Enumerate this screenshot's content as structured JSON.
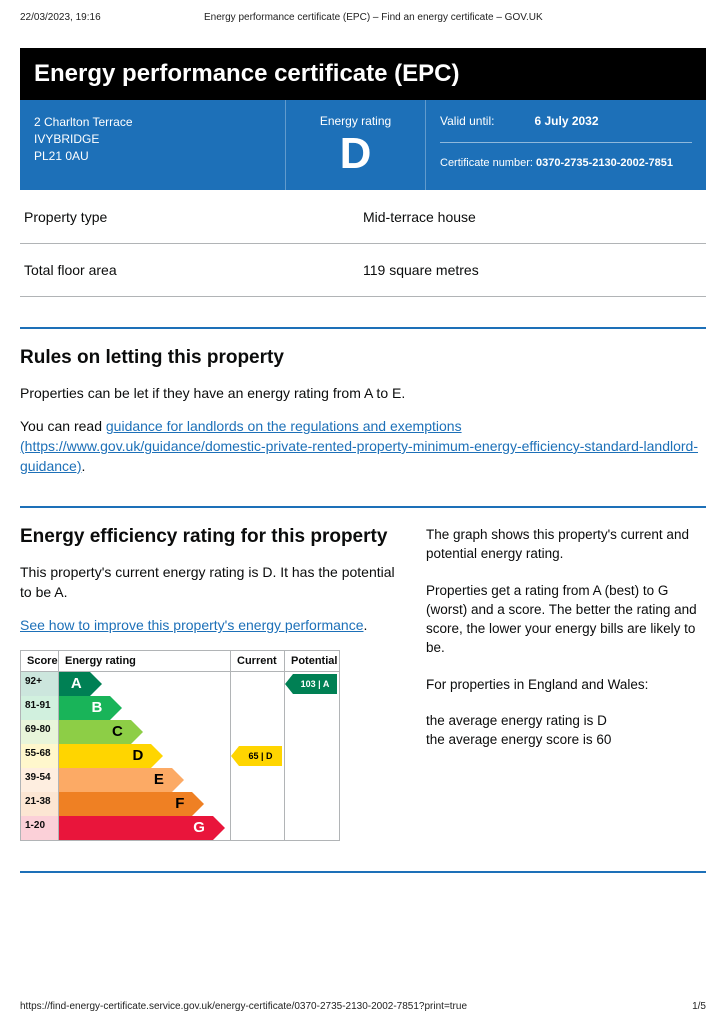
{
  "print_header": {
    "left": "22/03/2023, 19:16",
    "center": "Energy performance certificate (EPC) – Find an energy certificate – GOV.UK"
  },
  "title": "Energy performance certificate (EPC)",
  "address": {
    "line1": "2 Charlton Terrace",
    "line2": "IVYBRIDGE",
    "line3": "PL21 0AU"
  },
  "rating_box": {
    "label": "Energy rating",
    "letter": "D"
  },
  "validity": {
    "label": "Valid until:",
    "value": "6 July 2032",
    "cert_label": "Certificate number:",
    "cert_value": "0370-2735-2130-2002-7851"
  },
  "facts": {
    "property_type_label": "Property type",
    "property_type_value": "Mid-terrace house",
    "floor_area_label": "Total floor area",
    "floor_area_value": "119 square metres"
  },
  "letting": {
    "heading": "Rules on letting this property",
    "p1": "Properties can be let if they have an energy rating from A to E.",
    "p2a": "You can read ",
    "link_text": "guidance for landlords on the regulations and exemptions (https://www.gov.uk/guidance/domestic-private-rented-property-minimum-energy-efficiency-standard-landlord-guidance)",
    "p2b": "."
  },
  "eff": {
    "heading": "Energy efficiency rating for this property",
    "p1": "This property's current energy rating is D. It has the potential to be A.",
    "link": "See how to improve this property's energy performance",
    "right_p1": "The graph shows this property's current and potential energy rating.",
    "right_p2": "Properties get a rating from A (best) to G (worst) and a score. The better the rating and score, the lower your energy bills are likely to be.",
    "right_p3": "For properties in England and Wales:",
    "right_p4a": "the average energy rating is D",
    "right_p4b": "the average energy score is 60"
  },
  "chart": {
    "headers": {
      "score": "Score",
      "rating": "Energy rating",
      "current": "Current",
      "potential": "Potential"
    },
    "rows": [
      {
        "score": "92+",
        "letter": "A",
        "color": "#008054",
        "width_pct": 18,
        "text_color": "#fff"
      },
      {
        "score": "81-91",
        "letter": "B",
        "color": "#19b459",
        "width_pct": 30,
        "text_color": "#fff"
      },
      {
        "score": "69-80",
        "letter": "C",
        "color": "#8dce46",
        "width_pct": 42,
        "text_color": "#000"
      },
      {
        "score": "55-68",
        "letter": "D",
        "color": "#ffd500",
        "width_pct": 54,
        "text_color": "#000"
      },
      {
        "score": "39-54",
        "letter": "E",
        "color": "#fcaa65",
        "width_pct": 66,
        "text_color": "#000"
      },
      {
        "score": "21-38",
        "letter": "F",
        "color": "#ef8023",
        "width_pct": 78,
        "text_color": "#000"
      },
      {
        "score": "1-20",
        "letter": "G",
        "color": "#e9153b",
        "width_pct": 90,
        "text_color": "#fff"
      }
    ],
    "current": {
      "row_index": 3,
      "label": "65 | D",
      "bg": "#ffd500"
    },
    "potential": {
      "row_index": 0,
      "label": "103 | A",
      "bg": "#008054",
      "text": "#fff"
    }
  },
  "footer": {
    "url": "https://find-energy-certificate.service.gov.uk/energy-certificate/0370-2735-2130-2002-7851?print=true",
    "page": "1/5"
  }
}
